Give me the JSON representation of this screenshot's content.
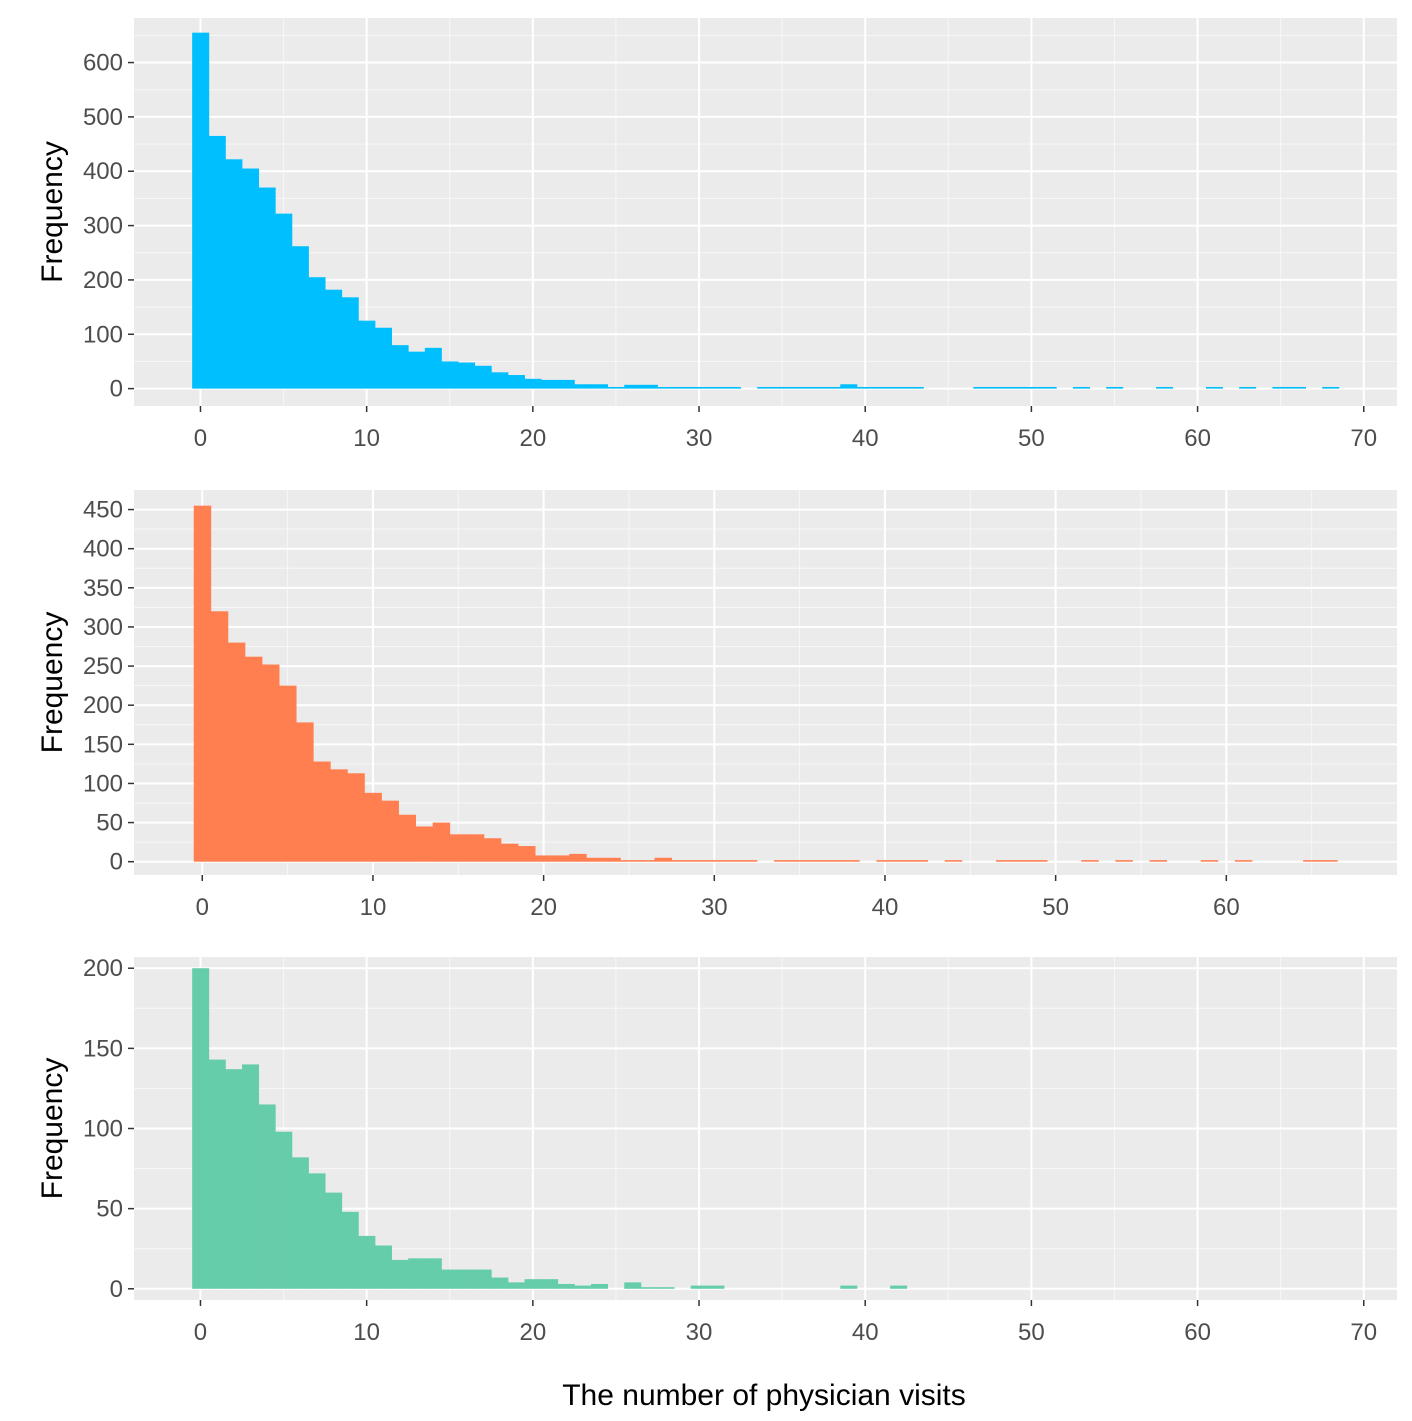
{
  "colors": {
    "panel_background": "#ebebeb",
    "grid_major": "#ffffff",
    "tick_text": "#4d4d4d",
    "tick_mark": "#333333"
  },
  "figure": {
    "xlabel": "The number of physician visits"
  },
  "chart_data": [
    {
      "type": "bar",
      "histogram": true,
      "bin_width": 1,
      "ylabel": "Frequency",
      "xlabel": "",
      "xlim": [
        -4,
        72
      ],
      "ylim": [
        -32,
        682
      ],
      "xticks": [
        0,
        10,
        20,
        30,
        40,
        50,
        60,
        70
      ],
      "yticks": [
        0,
        100,
        200,
        300,
        400,
        500,
        600
      ],
      "grid": true,
      "color": "#00bfff",
      "x": [
        0,
        1,
        2,
        3,
        4,
        5,
        6,
        7,
        8,
        9,
        10,
        11,
        12,
        13,
        14,
        15,
        16,
        17,
        18,
        19,
        20,
        21,
        22,
        23,
        24,
        25,
        26,
        27,
        28,
        29,
        30,
        31,
        32,
        33,
        34,
        35,
        36,
        37,
        38,
        39,
        40,
        41,
        42,
        43,
        44,
        45,
        46,
        47,
        48,
        49,
        50,
        51,
        52,
        53,
        54,
        55,
        56,
        57,
        58,
        59,
        60,
        61,
        62,
        63,
        64,
        65,
        66,
        67,
        68
      ],
      "values": [
        655,
        465,
        422,
        405,
        370,
        322,
        262,
        205,
        182,
        168,
        125,
        112,
        80,
        68,
        75,
        50,
        48,
        42,
        30,
        25,
        18,
        16,
        16,
        8,
        8,
        3,
        7,
        7,
        3,
        3,
        3,
        3,
        3,
        0,
        3,
        3,
        3,
        3,
        3,
        8,
        3,
        3,
        3,
        3,
        0,
        0,
        0,
        3,
        3,
        3,
        3,
        3,
        0,
        3,
        0,
        3,
        0,
        0,
        3,
        0,
        0,
        3,
        0,
        3,
        0,
        3,
        3,
        0,
        3
      ]
    },
    {
      "type": "bar",
      "histogram": true,
      "bin_width": 1,
      "ylabel": "Frequency",
      "xlabel": "",
      "xlim": [
        -4,
        70
      ],
      "ylim": [
        -17,
        475
      ],
      "xticks": [
        0,
        10,
        20,
        30,
        40,
        50,
        60
      ],
      "yticks": [
        0,
        50,
        100,
        150,
        200,
        250,
        300,
        350,
        400,
        450
      ],
      "grid": true,
      "color": "#ff7f50",
      "x": [
        0,
        1,
        2,
        3,
        4,
        5,
        6,
        7,
        8,
        9,
        10,
        11,
        12,
        13,
        14,
        15,
        16,
        17,
        18,
        19,
        20,
        21,
        22,
        23,
        24,
        25,
        26,
        27,
        28,
        29,
        30,
        31,
        32,
        33,
        34,
        35,
        36,
        37,
        38,
        39,
        40,
        41,
        42,
        43,
        44,
        45,
        46,
        47,
        48,
        49,
        50,
        51,
        52,
        53,
        54,
        55,
        56,
        57,
        58,
        59,
        60,
        61,
        62,
        63,
        64,
        65,
        66
      ],
      "values": [
        455,
        320,
        280,
        262,
        252,
        225,
        178,
        128,
        118,
        113,
        88,
        78,
        60,
        45,
        50,
        35,
        35,
        30,
        23,
        20,
        8,
        8,
        10,
        5,
        5,
        2,
        2,
        5,
        2,
        2,
        2,
        2,
        2,
        0,
        2,
        2,
        2,
        2,
        2,
        0,
        2,
        2,
        2,
        0,
        2,
        0,
        0,
        2,
        2,
        2,
        0,
        0,
        2,
        0,
        2,
        0,
        2,
        0,
        0,
        2,
        0,
        2,
        0,
        0,
        0,
        2,
        2
      ]
    },
    {
      "type": "bar",
      "histogram": true,
      "bin_width": 1,
      "ylabel": "Frequency",
      "xlabel": "The number of physician visits",
      "xlim": [
        -4,
        72
      ],
      "ylim": [
        -7,
        207
      ],
      "xticks": [
        0,
        10,
        20,
        30,
        40,
        50,
        60,
        70
      ],
      "yticks": [
        0,
        50,
        100,
        150,
        200
      ],
      "grid": true,
      "color": "#66cdaa",
      "x": [
        0,
        1,
        2,
        3,
        4,
        5,
        6,
        7,
        8,
        9,
        10,
        11,
        12,
        13,
        14,
        15,
        16,
        17,
        18,
        19,
        20,
        21,
        22,
        23,
        24,
        25,
        26,
        27,
        28,
        29,
        30,
        31,
        32,
        33,
        34,
        35,
        36,
        37,
        38,
        39,
        40,
        41,
        42
      ],
      "values": [
        200,
        143,
        137,
        140,
        115,
        98,
        82,
        72,
        60,
        48,
        33,
        27,
        18,
        19,
        19,
        12,
        12,
        12,
        7,
        4,
        6,
        6,
        3,
        2,
        3,
        0,
        4,
        1,
        1,
        0,
        2,
        2,
        0,
        0,
        0,
        0,
        0,
        0,
        0,
        2,
        0,
        0,
        2
      ]
    }
  ]
}
